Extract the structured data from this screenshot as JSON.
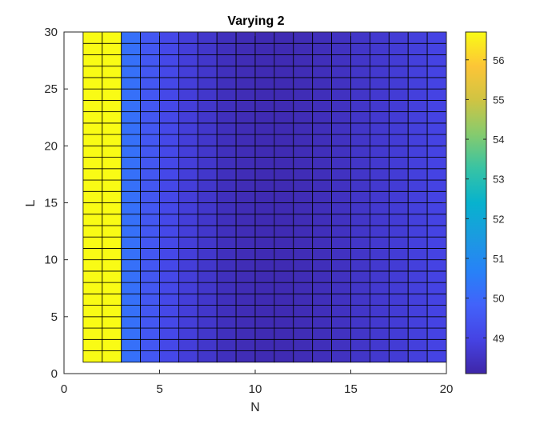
{
  "chart_data": {
    "type": "heatmap",
    "title": "Varying 2",
    "xlabel": "N",
    "ylabel": "L",
    "xlim": [
      0,
      20
    ],
    "ylim": [
      0,
      30
    ],
    "x_ticks": [
      0,
      5,
      10,
      15,
      20
    ],
    "y_ticks": [
      0,
      5,
      10,
      15,
      20,
      25,
      30
    ],
    "grid_x": [
      1,
      20
    ],
    "grid_y": [
      1,
      30
    ],
    "grid_step": 1,
    "n_columns": 19,
    "n_rows": 29,
    "column_values": [
      56.7,
      56.7,
      50.2,
      49.5,
      49.1,
      48.8,
      48.6,
      48.4,
      48.3,
      48.25,
      48.25,
      48.3,
      48.35,
      48.45,
      48.55,
      48.65,
      48.75,
      48.85,
      48.95
    ],
    "colorbar": {
      "limits": [
        48.1,
        56.7
      ],
      "ticks": [
        49,
        50,
        51,
        52,
        53,
        54,
        55,
        56
      ],
      "colormap": "parula"
    },
    "colors": {
      "cell_edge": "#000000",
      "axis": "#262626",
      "text": "#262626"
    }
  }
}
